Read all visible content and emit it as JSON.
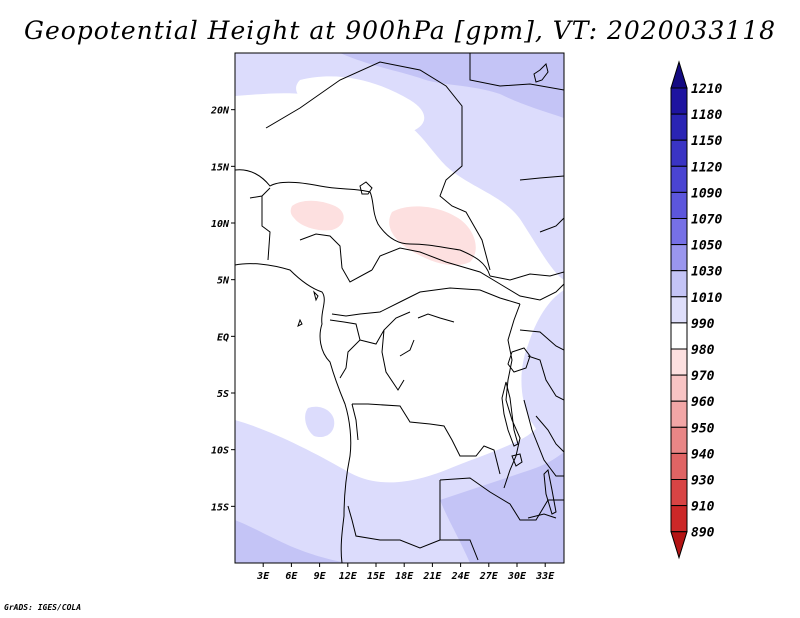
{
  "title": "Geopotential Height at 900hPa [gpm], VT: 2020033118",
  "credit": "GrADS: IGES/COLA",
  "map": {
    "lon_range": [
      0,
      35
    ],
    "lat_range": [
      -20,
      25
    ],
    "lon_ticks": [
      "3E",
      "6E",
      "9E",
      "12E",
      "15E",
      "18E",
      "21E",
      "24E",
      "27E",
      "30E",
      "33E"
    ],
    "lon_tick_values": [
      3,
      6,
      9,
      12,
      15,
      18,
      21,
      24,
      27,
      30,
      33
    ],
    "lat_ticks": [
      "20N",
      "15N",
      "10N",
      "5N",
      "EQ",
      "5S",
      "10S",
      "15S"
    ],
    "lat_tick_values": [
      20,
      15,
      10,
      5,
      0,
      -5,
      -10,
      -15
    ]
  },
  "colorbar": {
    "labels": [
      "1210",
      "1180",
      "1150",
      "1120",
      "1090",
      "1070",
      "1050",
      "1030",
      "1010",
      "990",
      "980",
      "970",
      "960",
      "950",
      "940",
      "930",
      "910",
      "890"
    ],
    "colors": [
      "#140a82",
      "#1e14a0",
      "#2a24b4",
      "#3a34c4",
      "#4a44d2",
      "#5c56dc",
      "#7670e6",
      "#9a96ee",
      "#c4c4f6",
      "#dedefa",
      "#ffffff",
      "#fde0e0",
      "#f8c4c4",
      "#f2a6a6",
      "#e98686",
      "#e06464",
      "#d84444",
      "#cc2828",
      "#b41414"
    ]
  }
}
